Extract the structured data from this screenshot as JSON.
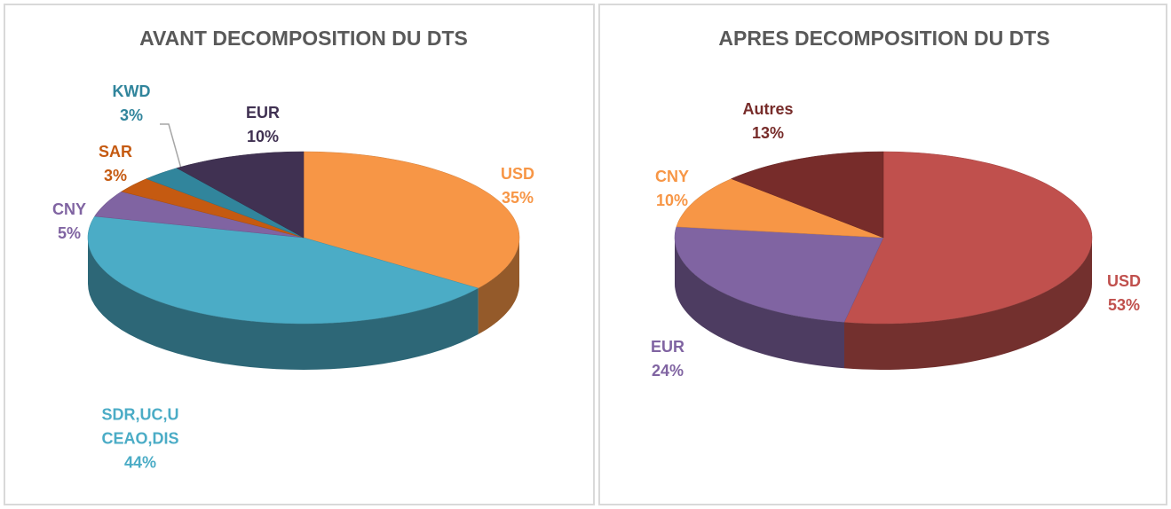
{
  "chart_data": [
    {
      "type": "pie",
      "title": "AVANT DECOMPOSITION DU DTS",
      "categories": [
        "USD",
        "SDR,UC,UCEAO,DIS",
        "CNY",
        "SAR",
        "KWD",
        "EUR"
      ],
      "values": [
        35,
        44,
        5,
        3,
        3,
        10
      ],
      "value_labels": [
        "35%",
        "44%",
        "5%",
        "3%",
        "3%",
        "10%"
      ],
      "colors": [
        "#f79646",
        "#4bacc6",
        "#8064a2",
        "#c55a11",
        "#31859c",
        "#403152"
      ]
    },
    {
      "type": "pie",
      "title": "APRES DECOMPOSITION DU DTS",
      "categories": [
        "USD",
        "EUR",
        "CNY",
        "Autres"
      ],
      "values": [
        53,
        24,
        10,
        13
      ],
      "value_labels": [
        "53%",
        "24%",
        "10%",
        "13%"
      ],
      "colors": [
        "#c0504d",
        "#8064a2",
        "#f79646",
        "#772c2a"
      ]
    }
  ]
}
